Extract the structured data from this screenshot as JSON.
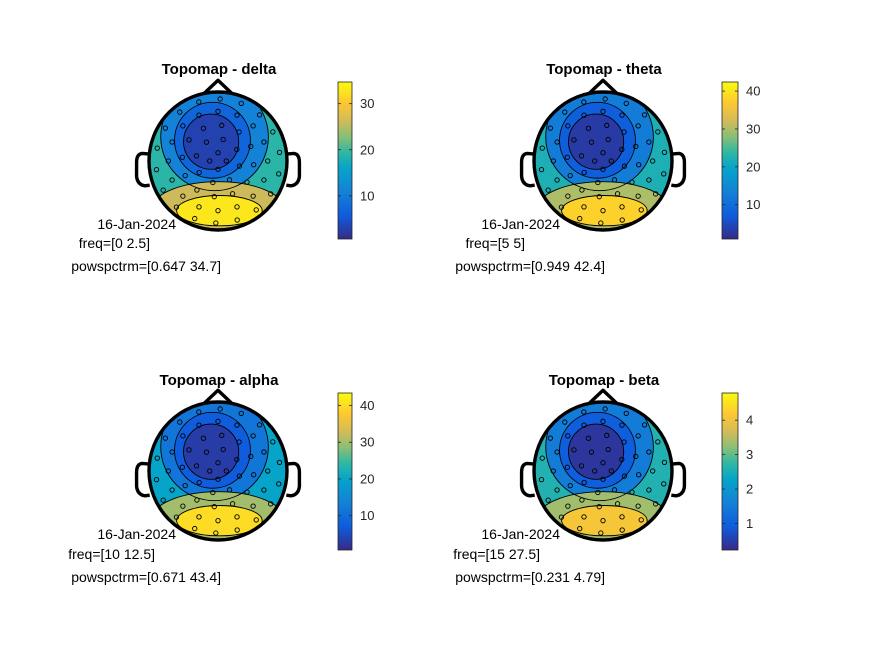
{
  "chart_data": [
    {
      "type": "heatmap",
      "title": "Topomap - delta",
      "annotation": [
        "16-Jan-2024",
        "freq=[0 2.5]",
        "powspctrm=[0.647 34.7]"
      ],
      "freq": [
        0,
        2.5
      ],
      "powspctrm_range": [
        0.647,
        34.7
      ],
      "colorbar": {
        "ticks": [
          10,
          20,
          30
        ],
        "range": [
          0.647,
          34.7
        ]
      },
      "levels": {
        "frontal": 3,
        "temporal": 19,
        "posterior": 33
      },
      "colormap": "parula"
    },
    {
      "type": "heatmap",
      "title": "Topomap - theta",
      "annotation": [
        "16-Jan-2024",
        "freq=[5 5]",
        "powspctrm=[0.949 42.4]"
      ],
      "freq": [
        5,
        5
      ],
      "powspctrm_range": [
        0.949,
        42.4
      ],
      "colorbar": {
        "ticks": [
          10,
          20,
          30,
          40
        ],
        "range": [
          0.949,
          42.4
        ]
      },
      "levels": {
        "frontal": 3,
        "temporal": 22,
        "posterior": 38
      },
      "colormap": "parula"
    },
    {
      "type": "heatmap",
      "title": "Topomap - alpha",
      "annotation": [
        "16-Jan-2024",
        "freq=[10 12.5]",
        "powspctrm=[0.671 43.4]"
      ],
      "freq": [
        10,
        12.5
      ],
      "powspctrm_range": [
        0.671,
        43.4
      ],
      "colorbar": {
        "ticks": [
          10,
          20,
          30,
          40
        ],
        "range": [
          0.671,
          43.4
        ]
      },
      "levels": {
        "frontal": 3,
        "temporal": 20,
        "posterior": 40
      },
      "colormap": "parula"
    },
    {
      "type": "heatmap",
      "title": "Topomap - beta",
      "annotation": [
        "16-Jan-2024",
        "freq=[15 27.5]",
        "powspctrm=[0.231 4.79]"
      ],
      "freq": [
        15,
        27.5
      ],
      "powspctrm_range": [
        0.231,
        4.79
      ],
      "colorbar": {
        "ticks": [
          1,
          2,
          3,
          4
        ],
        "range": [
          0.231,
          4.79
        ]
      },
      "levels": {
        "frontal": 0.4,
        "temporal": 2.6,
        "posterior": 4.1
      },
      "colormap": "parula"
    }
  ]
}
